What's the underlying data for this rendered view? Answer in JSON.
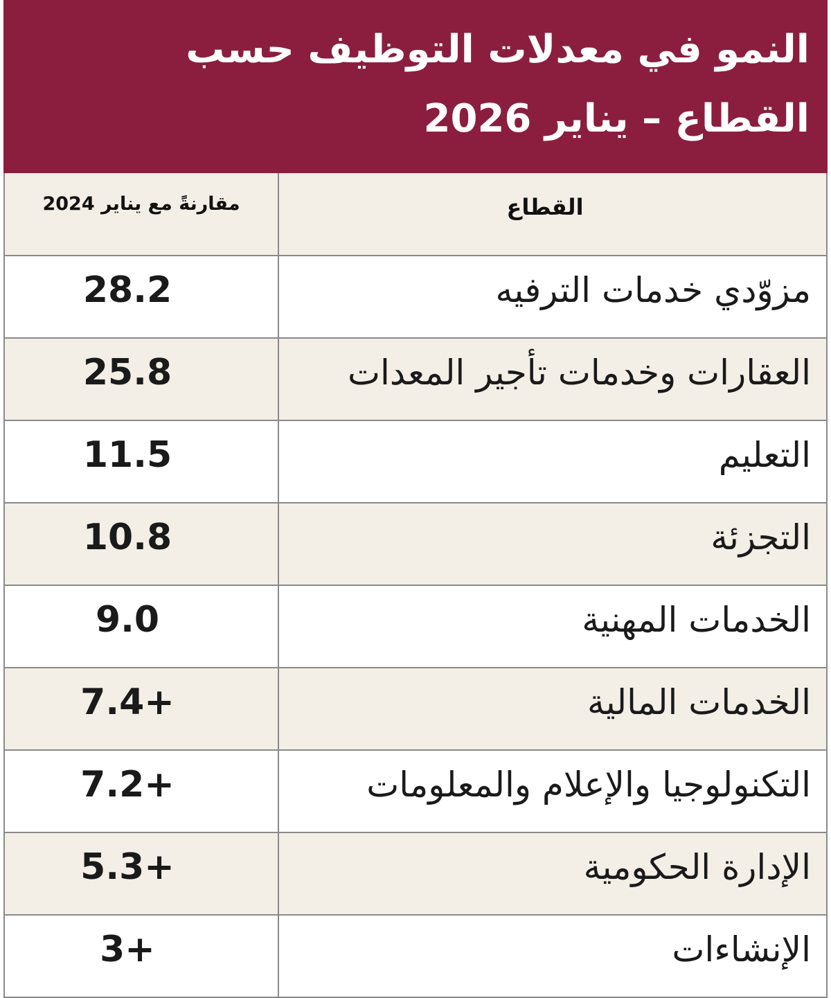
{
  "header": {
    "title_lines": [
      "النمو في معدلات التوظيف حسب",
      "القطاع – يناير 2026"
    ]
  },
  "table": {
    "columns": [
      "مقارنةً مع يناير 2024",
      "القطاع"
    ],
    "rows": [
      [
        "28.2",
        "مزوّدي خدمات الترفيه"
      ],
      [
        "25.8",
        "العقارات وخدمات تأجير المعدات"
      ],
      [
        "11.5",
        "التعليم"
      ],
      [
        "10.8",
        "التجزئة"
      ],
      [
        "9.0",
        "الخدمات المهنية"
      ],
      [
        "7.4+",
        "الخدمات المالية"
      ],
      [
        "7.2+",
        "التكنولوجيا والإعلام والمعلومات"
      ],
      [
        "5.3+",
        "الإدارة الحكومية"
      ],
      [
        "3+",
        "الإنشاءات"
      ]
    ]
  }
}
